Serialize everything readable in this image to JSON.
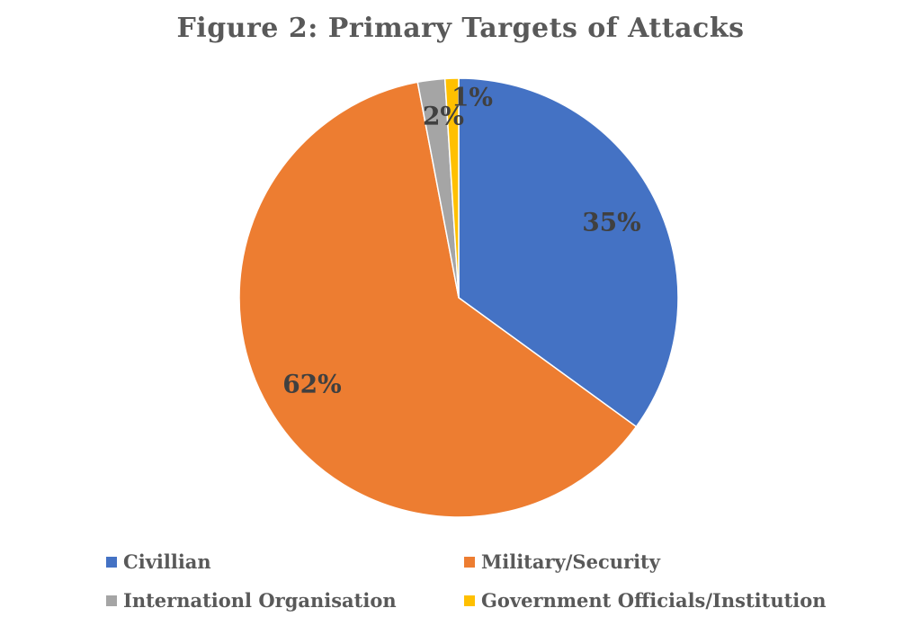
{
  "chart_data": {
    "type": "pie",
    "title": "Figure 2: Primary Targets of Attacks",
    "slices": [
      {
        "label": "Civillian",
        "value": 35,
        "data_label": "35%",
        "color": "#4472C4"
      },
      {
        "label": "Military/Security",
        "value": 62,
        "data_label": "62%",
        "color": "#ED7D31"
      },
      {
        "label": "Internationl Organisation",
        "value": 2,
        "data_label": "2%",
        "color": "#A5A5A5"
      },
      {
        "label": "Government Officials/Institution",
        "value": 1,
        "data_label": "1%",
        "color": "#FFC000"
      }
    ],
    "start_angle": "12 o'clock",
    "direction": "clockwise",
    "legend_position": "bottom"
  }
}
